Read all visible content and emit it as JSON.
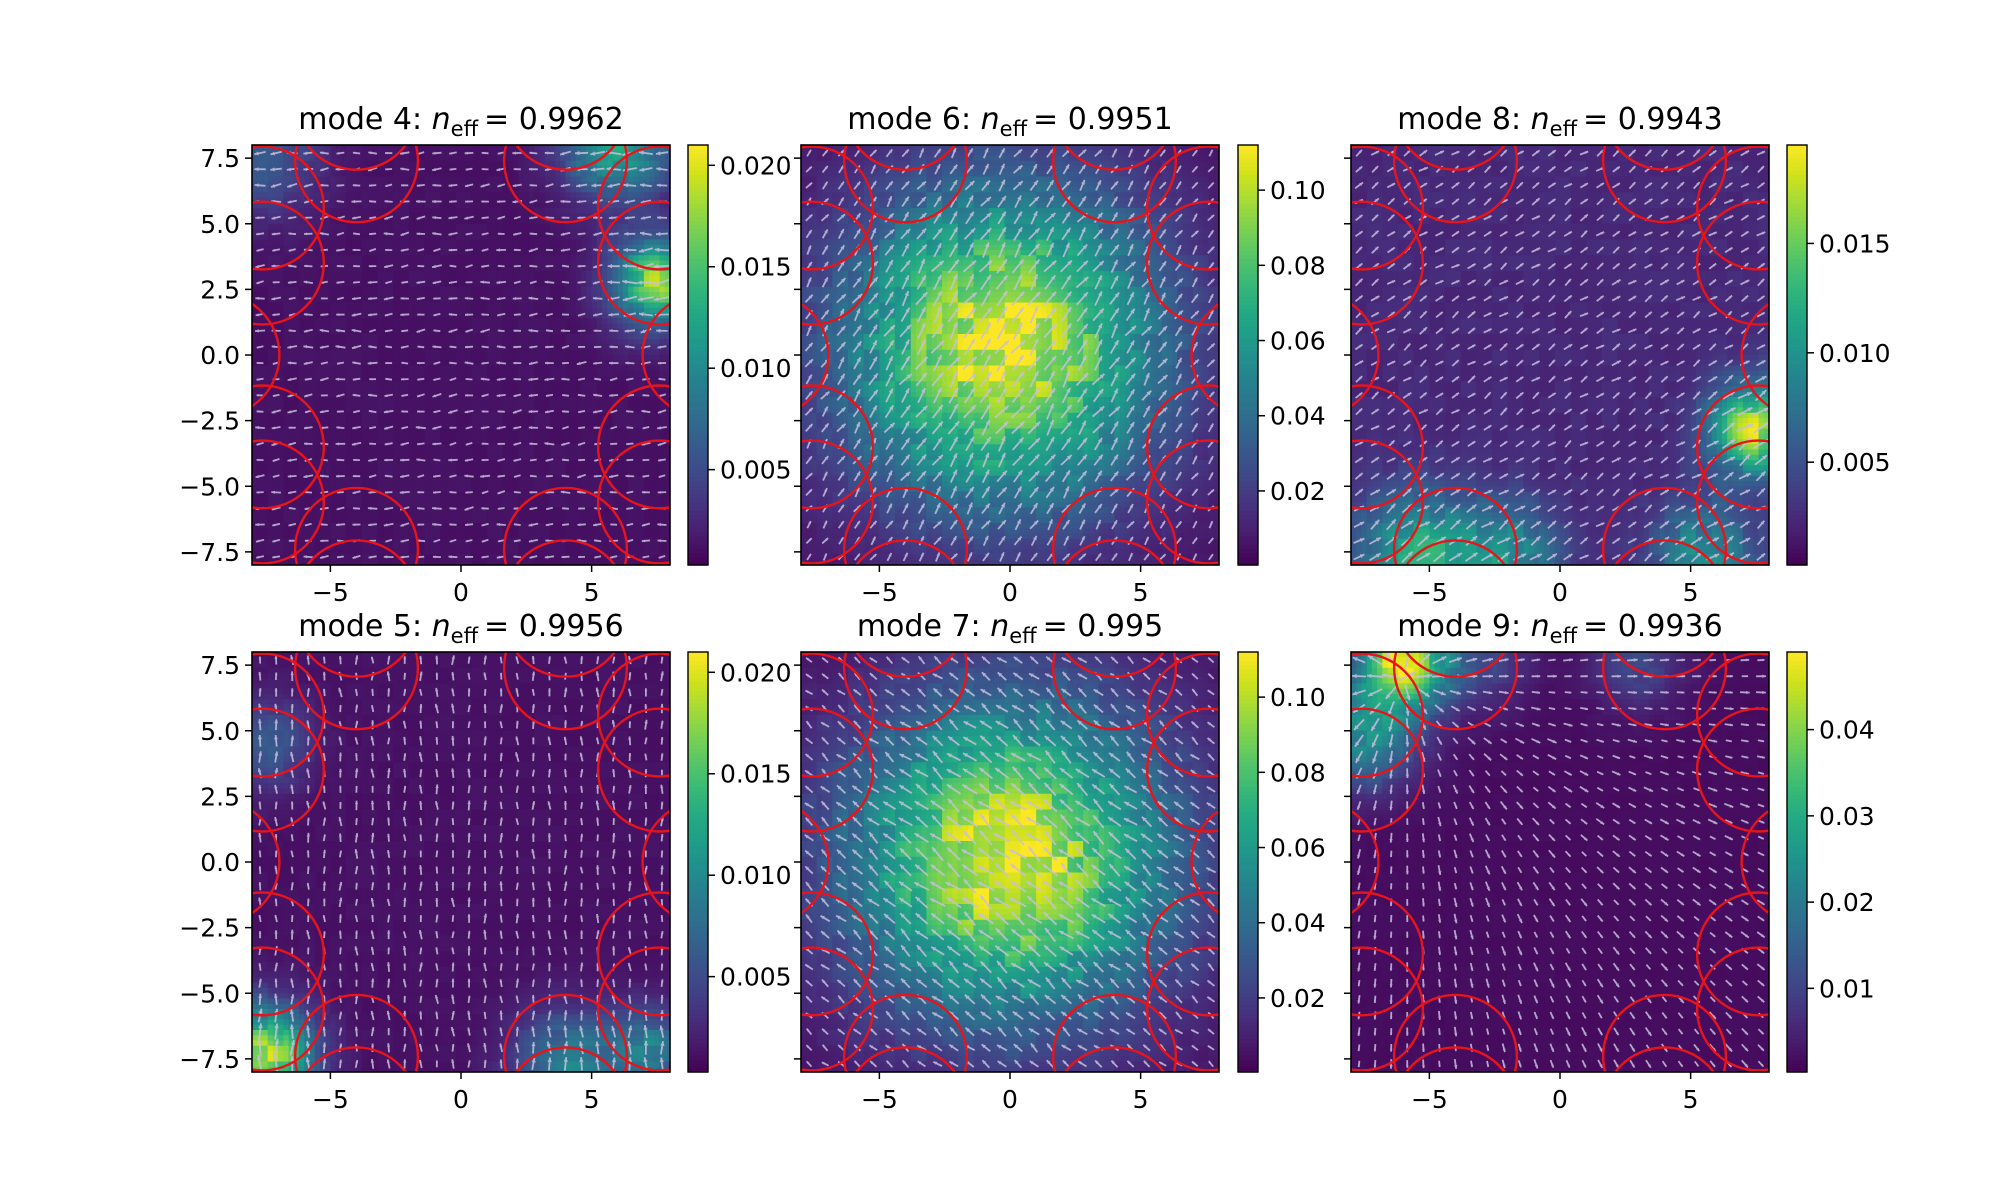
{
  "figure": {
    "background": "#ffffff"
  },
  "chart_data": [
    {
      "type": "heatmap",
      "subplot": "mode-4",
      "title": {
        "prefix": "mode 4: ",
        "var": "n",
        "sub": "eff",
        "value": "= 0.9962"
      },
      "xlim": [
        -8,
        8
      ],
      "ylim": [
        -8,
        8
      ],
      "xticks": [
        -5,
        0,
        5
      ],
      "xtick_labels": [
        "−5",
        "0",
        "5"
      ],
      "yticks": [
        7.5,
        5.0,
        2.5,
        0.0,
        -2.5,
        -5.0,
        -7.5
      ],
      "ytick_labels": [
        "7.5",
        "5.0",
        "2.5",
        "0.0",
        "−2.5",
        "−5.0",
        "−7.5"
      ],
      "colorbar": {
        "min": 0.0003,
        "max": 0.021,
        "ticks": [
          0.005,
          0.01,
          0.015,
          0.02
        ],
        "tick_labels": [
          "0.005",
          "0.010",
          "0.015",
          "0.020"
        ],
        "colormap": "viridis"
      },
      "field": {
        "pattern": "edge-hotspots",
        "base": 0.0012,
        "hotspots": [
          [
            6.0,
            8.0,
            0.012,
            1.4
          ],
          [
            7.5,
            2.8,
            0.016,
            1.2
          ],
          [
            -7.5,
            7.5,
            0.005,
            1.5
          ]
        ]
      },
      "arrows": {
        "pattern": "uniform",
        "angle_deg": 185
      },
      "overlay": {
        "color": "#e8141a",
        "shapes": "capillary-tubes"
      }
    },
    {
      "type": "heatmap",
      "subplot": "mode-6",
      "title": {
        "prefix": "mode 6: ",
        "var": "n",
        "sub": "eff",
        "value": "= 0.9951"
      },
      "xlim": [
        -8,
        8
      ],
      "ylim": [
        -8,
        8
      ],
      "xticks": [
        -5,
        0,
        5
      ],
      "xtick_labels": [
        "−5",
        "0",
        "5"
      ],
      "yticks": [
        7.5,
        5.0,
        2.5,
        0.0,
        -2.5,
        -5.0,
        -7.5
      ],
      "ytick_labels": [
        "",
        "",
        "",
        "",
        "",
        "",
        ""
      ],
      "colorbar": {
        "min": 0.0003,
        "max": 0.112,
        "ticks": [
          0.02,
          0.04,
          0.06,
          0.08,
          0.1
        ],
        "tick_labels": [
          "0.02",
          "0.04",
          "0.06",
          "0.08",
          "0.10"
        ],
        "colormap": "viridis"
      },
      "field": {
        "pattern": "core",
        "base": 0.004,
        "peak": 0.108,
        "center": [
          -0.3,
          0.3
        ],
        "sigma": 4.2
      },
      "arrows": {
        "pattern": "uniform",
        "angle_deg": 55
      },
      "overlay": {
        "color": "#e8141a",
        "shapes": "capillary-tubes"
      }
    },
    {
      "type": "heatmap",
      "subplot": "mode-8",
      "title": {
        "prefix": "mode 8: ",
        "var": "n",
        "sub": "eff",
        "value": "= 0.9943"
      },
      "xlim": [
        -8,
        8
      ],
      "ylim": [
        -8,
        8
      ],
      "xticks": [
        -5,
        0,
        5
      ],
      "xtick_labels": [
        "−5",
        "0",
        "5"
      ],
      "yticks": [
        7.5,
        5.0,
        2.5,
        0.0,
        -2.5,
        -5.0,
        -7.5
      ],
      "ytick_labels": [
        "",
        "",
        "",
        "",
        "",
        "",
        ""
      ],
      "colorbar": {
        "min": 0.0003,
        "max": 0.0195,
        "ticks": [
          0.005,
          0.01,
          0.015
        ],
        "tick_labels": [
          "0.005",
          "0.010",
          "0.015"
        ],
        "colormap": "viridis"
      },
      "field": {
        "pattern": "edge-hotspots",
        "base": 0.0025,
        "hotspots": [
          [
            7.5,
            -2.8,
            0.015,
            1.2
          ],
          [
            -5.5,
            -7.5,
            0.009,
            1.6
          ],
          [
            -2.0,
            -7.6,
            0.007,
            1.4
          ],
          [
            5.5,
            -7.6,
            0.007,
            1.4
          ]
        ]
      },
      "arrows": {
        "pattern": "uniform",
        "angle_deg": 35
      },
      "overlay": {
        "color": "#e8141a",
        "shapes": "capillary-tubes"
      }
    },
    {
      "type": "heatmap",
      "subplot": "mode-5",
      "title": {
        "prefix": "mode 5: ",
        "var": "n",
        "sub": "eff",
        "value": "= 0.9956"
      },
      "xlim": [
        -8,
        8
      ],
      "ylim": [
        -8,
        8
      ],
      "xticks": [
        -5,
        0,
        5
      ],
      "xtick_labels": [
        "−5",
        "0",
        "5"
      ],
      "yticks": [
        7.5,
        5.0,
        2.5,
        0.0,
        -2.5,
        -5.0,
        -7.5
      ],
      "ytick_labels": [
        "7.5",
        "5.0",
        "2.5",
        "0.0",
        "−2.5",
        "−5.0",
        "−7.5"
      ],
      "colorbar": {
        "min": 0.0003,
        "max": 0.021,
        "ticks": [
          0.005,
          0.01,
          0.015,
          0.02
        ],
        "tick_labels": [
          "0.005",
          "0.010",
          "0.015",
          "0.020"
        ],
        "colormap": "viridis"
      },
      "field": {
        "pattern": "edge-hotspots",
        "base": 0.0012,
        "hotspots": [
          [
            -7.6,
            -7.4,
            0.018,
            1.3
          ],
          [
            4.0,
            -7.7,
            0.008,
            1.4
          ],
          [
            7.2,
            -7.2,
            0.008,
            1.1
          ],
          [
            -7.5,
            4.5,
            0.005,
            1.2
          ]
        ]
      },
      "arrows": {
        "pattern": "uniform",
        "angle_deg": 92
      },
      "overlay": {
        "color": "#e8141a",
        "shapes": "capillary-tubes"
      }
    },
    {
      "type": "heatmap",
      "subplot": "mode-7",
      "title": {
        "prefix": "mode 7: ",
        "var": "n",
        "sub": "eff",
        "value": "= 0.995"
      },
      "xlim": [
        -8,
        8
      ],
      "ylim": [
        -8,
        8
      ],
      "xticks": [
        -5,
        0,
        5
      ],
      "xtick_labels": [
        "−5",
        "0",
        "5"
      ],
      "yticks": [
        7.5,
        5.0,
        2.5,
        0.0,
        -2.5,
        -5.0,
        -7.5
      ],
      "ytick_labels": [
        "",
        "",
        "",
        "",
        "",
        "",
        ""
      ],
      "colorbar": {
        "min": 0.0003,
        "max": 0.112,
        "ticks": [
          0.02,
          0.04,
          0.06,
          0.08,
          0.1
        ],
        "tick_labels": [
          "0.02",
          "0.04",
          "0.06",
          "0.08",
          "0.10"
        ],
        "colormap": "viridis"
      },
      "field": {
        "pattern": "core",
        "base": 0.004,
        "peak": 0.108,
        "center": [
          0.0,
          0.1
        ],
        "sigma": 4.2
      },
      "arrows": {
        "pattern": "uniform",
        "angle_deg": 140
      },
      "overlay": {
        "color": "#e8141a",
        "shapes": "capillary-tubes"
      }
    },
    {
      "type": "heatmap",
      "subplot": "mode-9",
      "title": {
        "prefix": "mode 9: ",
        "var": "n",
        "sub": "eff",
        "value": "= 0.9936"
      },
      "xlim": [
        -8,
        8
      ],
      "ylim": [
        -8,
        8
      ],
      "xticks": [
        -5,
        0,
        5
      ],
      "xtick_labels": [
        "−5",
        "0",
        "5"
      ],
      "yticks": [
        7.5,
        5.0,
        2.5,
        0.0,
        -2.5,
        -5.0,
        -7.5
      ],
      "ytick_labels": [
        "",
        "",
        "",
        "",
        "",
        "",
        ""
      ],
      "colorbar": {
        "min": 0.0003,
        "max": 0.049,
        "ticks": [
          0.01,
          0.02,
          0.03,
          0.04
        ],
        "tick_labels": [
          "0.01",
          "0.02",
          "0.03",
          "0.04"
        ],
        "colormap": "viridis"
      },
      "field": {
        "pattern": "edge-hotspots",
        "base": 0.0018,
        "hotspots": [
          [
            -6.0,
            7.6,
            0.045,
            1.2
          ],
          [
            -7.5,
            4.8,
            0.022,
            1.4
          ],
          [
            -3.0,
            7.6,
            0.009,
            1.2
          ],
          [
            3.0,
            7.6,
            0.009,
            1.2
          ]
        ]
      },
      "arrows": {
        "pattern": "radial",
        "source": [
          -6.0,
          7.0
        ]
      },
      "overlay": {
        "color": "#e8141a",
        "shapes": "capillary-tubes"
      }
    }
  ]
}
